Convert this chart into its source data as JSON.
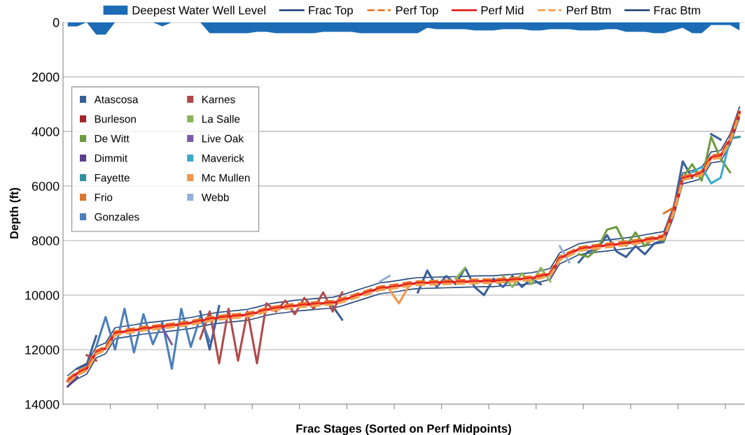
{
  "chart_data": {
    "type": "line",
    "xlabel": "Frac Stages (Sorted on Perf Midpoints)",
    "ylabel": "Depth (ft)",
    "ylim": [
      14000,
      0
    ],
    "yticks": [
      0,
      2000,
      4000,
      6000,
      8000,
      10000,
      12000,
      14000
    ],
    "grid": "y",
    "legend": "top",
    "categories": [
      null,
      null,
      null,
      null,
      null,
      null,
      null,
      null,
      null,
      null,
      null,
      null,
      null,
      null,
      null,
      null,
      null,
      null,
      null,
      null,
      null,
      null,
      null,
      null,
      null,
      null,
      null,
      null,
      null,
      null,
      null,
      null,
      null,
      null,
      null,
      null,
      null,
      null,
      null,
      null,
      null,
      null,
      null,
      null,
      null,
      null,
      null,
      null,
      null,
      null,
      null,
      null,
      null,
      null,
      null,
      null,
      null,
      null,
      null,
      null,
      null,
      null,
      null,
      null,
      null,
      null,
      null,
      null,
      null,
      null,
      null,
      null
    ],
    "series": [
      {
        "name": "Deepest Water Well Level",
        "type": "area",
        "color": "#1c6cb5",
        "values": [
          150,
          150,
          0,
          450,
          450,
          0,
          0,
          0,
          0,
          0,
          150,
          0,
          0,
          0,
          0,
          400,
          400,
          400,
          400,
          400,
          350,
          350,
          400,
          400,
          400,
          400,
          400,
          350,
          350,
          350,
          350,
          400,
          400,
          400,
          400,
          400,
          400,
          400,
          200,
          250,
          250,
          250,
          250,
          300,
          300,
          300,
          250,
          250,
          250,
          300,
          300,
          250,
          250,
          250,
          300,
          300,
          300,
          250,
          250,
          350,
          350,
          350,
          400,
          400,
          300,
          200,
          400,
          400,
          100,
          100,
          100,
          300
        ]
      },
      {
        "name": "Frac Top",
        "color": "#2b4c7e",
        "line_style": "solid",
        "values": [
          12950,
          12670,
          12500,
          11900,
          11750,
          11200,
          11140,
          11090,
          11030,
          10990,
          10950,
          10910,
          10870,
          10820,
          10750,
          10680,
          10630,
          10590,
          10560,
          10520,
          10440,
          10340,
          10280,
          10240,
          10190,
          10160,
          10130,
          10100,
          10080,
          9990,
          9880,
          9770,
          9660,
          9550,
          9510,
          9460,
          9400,
          9360,
          9350,
          9340,
          9330,
          9320,
          9310,
          9300,
          9290,
          9290,
          9260,
          9240,
          9210,
          9180,
          9110,
          9020,
          8450,
          8290,
          8120,
          8060,
          8020,
          7980,
          7940,
          7900,
          7850,
          7790,
          7730,
          7670,
          6760,
          5520,
          5430,
          5330,
          4750,
          4700,
          4100,
          3100
        ]
      },
      {
        "name": "Perf Top",
        "color": "#e8782a",
        "line_style": "dashed",
        "values": [
          13090,
          12810,
          12640,
          12040,
          11890,
          11340,
          11280,
          11230,
          11170,
          11130,
          11090,
          11050,
          11010,
          10960,
          10890,
          10820,
          10770,
          10730,
          10700,
          10660,
          10580,
          10480,
          10420,
          10380,
          10330,
          10300,
          10270,
          10240,
          10220,
          10130,
          10020,
          9910,
          9800,
          9690,
          9650,
          9600,
          9540,
          9500,
          9490,
          9480,
          9470,
          9460,
          9450,
          9440,
          9430,
          9430,
          9400,
          9380,
          9350,
          9320,
          9250,
          9160,
          8590,
          8430,
          8260,
          8200,
          8160,
          8120,
          8080,
          8040,
          7990,
          7930,
          7870,
          7810,
          6900,
          5660,
          5570,
          5470,
          4890,
          4840,
          4240,
          3240
        ]
      },
      {
        "name": "Perf Mid",
        "color": "#e52421",
        "line_style": "solid",
        "values": [
          13150,
          12870,
          12700,
          12100,
          11950,
          11400,
          11340,
          11290,
          11230,
          11190,
          11150,
          11110,
          11070,
          11020,
          10950,
          10880,
          10830,
          10790,
          10760,
          10720,
          10640,
          10540,
          10480,
          10440,
          10390,
          10360,
          10330,
          10300,
          10280,
          10190,
          10080,
          9970,
          9860,
          9750,
          9710,
          9660,
          9600,
          9560,
          9550,
          9540,
          9530,
          9520,
          9510,
          9500,
          9490,
          9490,
          9460,
          9440,
          9410,
          9380,
          9310,
          9220,
          8650,
          8490,
          8320,
          8260,
          8220,
          8180,
          8140,
          8100,
          8050,
          7990,
          7930,
          7870,
          6960,
          5720,
          5630,
          5530,
          4950,
          4900,
          4300,
          3300
        ]
      },
      {
        "name": "Perf Btm",
        "color": "#f4a050",
        "line_style": "dashed",
        "values": [
          13210,
          12930,
          12760,
          12160,
          12010,
          11460,
          11400,
          11350,
          11290,
          11250,
          11210,
          11170,
          11130,
          11080,
          11010,
          10940,
          10890,
          10850,
          10820,
          10780,
          10700,
          10600,
          10540,
          10500,
          10450,
          10420,
          10390,
          10360,
          10340,
          10250,
          10140,
          10030,
          9920,
          9810,
          9770,
          9720,
          9660,
          9620,
          9610,
          9600,
          9590,
          9580,
          9570,
          9560,
          9550,
          9550,
          9520,
          9500,
          9470,
          9440,
          9370,
          9280,
          8710,
          8550,
          8380,
          8320,
          8280,
          8240,
          8200,
          8160,
          8110,
          8050,
          7990,
          7930,
          7020,
          5780,
          5690,
          5590,
          5010,
          4960,
          4360,
          3360
        ]
      },
      {
        "name": "Frac Btm",
        "color": "#2b4c7e",
        "line_style": "solid",
        "values": [
          13350,
          13070,
          12900,
          12300,
          12150,
          11600,
          11540,
          11490,
          11430,
          11390,
          11350,
          11310,
          11270,
          11220,
          11150,
          11080,
          11030,
          10990,
          10960,
          10920,
          10840,
          10740,
          10680,
          10640,
          10590,
          10560,
          10530,
          10500,
          10480,
          10390,
          10280,
          10170,
          10060,
          9950,
          9910,
          9860,
          9800,
          9760,
          9750,
          9740,
          9730,
          9720,
          9710,
          9700,
          9690,
          9690,
          9660,
          9640,
          9610,
          9580,
          9510,
          9420,
          8850,
          8690,
          8520,
          8460,
          8420,
          8380,
          8340,
          8300,
          8250,
          8190,
          8130,
          8070,
          7160,
          5920,
          5830,
          5730,
          5150,
          5100,
          4500,
          3500
        ]
      },
      {
        "name": "Atascosa",
        "color": "#3a5f98",
        "values": [
          null,
          12700,
          12550,
          11500,
          null,
          null,
          null,
          null,
          null,
          null,
          null,
          null,
          null,
          null,
          10600,
          12000,
          10400,
          null,
          null,
          null,
          null,
          null,
          null,
          null,
          null,
          null,
          null,
          null,
          10400,
          10900,
          null,
          null,
          null,
          null,
          null,
          null,
          null,
          9900,
          9100,
          9700,
          9300,
          9600,
          9000,
          9700,
          10000,
          9400,
          9700,
          9300,
          9700,
          9400,
          9600,
          null,
          null,
          null,
          8800,
          8400,
          8300,
          7800,
          8400,
          8600,
          8200,
          8500,
          8100,
          8000,
          6900,
          5100,
          5700,
          null,
          4100,
          4300,
          null,
          null
        ]
      },
      {
        "name": "Burleson",
        "color": "#a0262a",
        "values": [
          null,
          null,
          null,
          null,
          null,
          null,
          null,
          null,
          null,
          null,
          null,
          null,
          null,
          null,
          null,
          null,
          null,
          null,
          null,
          null,
          null,
          null,
          null,
          null,
          null,
          null,
          null,
          null,
          null,
          null,
          null,
          null,
          null,
          null,
          null,
          null,
          null,
          null,
          null,
          null,
          null,
          null,
          null,
          null,
          null,
          null,
          null,
          null,
          null,
          null,
          null,
          9300,
          8700,
          null,
          null,
          null,
          null,
          null,
          null,
          null,
          null,
          null,
          null,
          null,
          null,
          null,
          null,
          null,
          null,
          null,
          null,
          null
        ]
      },
      {
        "name": "De Witt",
        "color": "#6e9a3e",
        "values": [
          null,
          null,
          null,
          null,
          null,
          null,
          null,
          null,
          null,
          null,
          null,
          null,
          null,
          null,
          null,
          null,
          null,
          null,
          null,
          null,
          null,
          null,
          null,
          null,
          null,
          null,
          null,
          null,
          null,
          null,
          null,
          null,
          null,
          null,
          null,
          null,
          null,
          null,
          null,
          null,
          null,
          null,
          null,
          null,
          null,
          null,
          null,
          null,
          null,
          null,
          null,
          null,
          null,
          null,
          8500,
          8600,
          8300,
          7600,
          7500,
          8200,
          7700,
          8200,
          7900,
          8000,
          null,
          5700,
          5200,
          5800,
          4200,
          5000,
          5500,
          null
        ]
      },
      {
        "name": "Dimmit",
        "color": "#5b3f8c",
        "values": [
          13350,
          13000,
          null,
          null,
          null,
          null,
          null,
          null,
          null,
          null,
          null,
          null,
          null,
          null,
          null,
          null,
          null,
          null,
          null,
          null,
          null,
          null,
          null,
          null,
          null,
          null,
          null,
          null,
          null,
          null,
          null,
          null,
          null,
          null,
          null,
          null,
          null,
          null,
          null,
          null,
          null,
          null,
          null,
          null,
          null,
          null,
          null,
          null,
          null,
          null,
          null,
          null,
          null,
          null,
          null,
          null,
          null,
          null,
          null,
          null,
          null,
          null,
          null,
          null,
          null,
          null,
          null,
          null,
          null,
          null,
          null,
          null
        ]
      },
      {
        "name": "Fayette",
        "color": "#2f8fa0",
        "values": [
          null,
          null,
          null,
          null,
          null,
          null,
          null,
          null,
          null,
          null,
          null,
          null,
          null,
          null,
          null,
          null,
          null,
          null,
          null,
          null,
          null,
          null,
          null,
          null,
          null,
          null,
          null,
          null,
          null,
          null,
          null,
          null,
          null,
          null,
          null,
          null,
          null,
          null,
          null,
          null,
          null,
          null,
          null,
          null,
          null,
          null,
          null,
          null,
          null,
          null,
          null,
          null,
          null,
          null,
          null,
          null,
          null,
          null,
          null,
          null,
          null,
          null,
          null,
          null,
          null,
          null,
          null,
          null,
          null,
          null,
          4250,
          4200
        ]
      },
      {
        "name": "Frio",
        "color": "#d9782f",
        "values": [
          null,
          null,
          null,
          null,
          null,
          null,
          null,
          null,
          null,
          null,
          null,
          null,
          null,
          null,
          null,
          null,
          null,
          null,
          null,
          null,
          null,
          null,
          null,
          null,
          null,
          null,
          null,
          null,
          null,
          null,
          null,
          null,
          null,
          null,
          null,
          null,
          null,
          null,
          null,
          null,
          null,
          null,
          null,
          null,
          null,
          null,
          null,
          null,
          null,
          null,
          null,
          null,
          null,
          null,
          null,
          null,
          null,
          null,
          null,
          null,
          null,
          null,
          null,
          7000,
          6800,
          null,
          null,
          null,
          null,
          null,
          null,
          null
        ]
      },
      {
        "name": "Gonzales",
        "color": "#4a7ebb",
        "values": [
          null,
          null,
          null,
          11900,
          10800,
          12000,
          10500,
          12100,
          10700,
          11800,
          11000,
          12700,
          10500,
          11900,
          10800,
          11700,
          null,
          null,
          null,
          null,
          null,
          null,
          null,
          null,
          null,
          null,
          null,
          null,
          null,
          null,
          null,
          null,
          null,
          null,
          null,
          null,
          null,
          null,
          null,
          null,
          null,
          null,
          null,
          null,
          null,
          null,
          null,
          null,
          null,
          null,
          null,
          null,
          null,
          null,
          null,
          null,
          null,
          null,
          null,
          null,
          null,
          null,
          null,
          null,
          null,
          null,
          null,
          null,
          null,
          null,
          null,
          null
        ]
      },
      {
        "name": "Karnes",
        "color": "#b04a4a",
        "values": [
          null,
          null,
          12200,
          12400,
          null,
          null,
          null,
          null,
          null,
          null,
          null,
          null,
          null,
          null,
          11600,
          10600,
          12500,
          10500,
          12400,
          10600,
          12500,
          10300,
          10600,
          10200,
          10700,
          10100,
          10500,
          9900,
          10600,
          9900,
          null,
          null,
          null,
          null,
          null,
          null,
          null,
          null,
          null,
          null,
          null,
          null,
          null,
          null,
          null,
          null,
          null,
          null,
          null,
          null,
          null,
          null,
          null,
          null,
          null,
          null,
          null,
          null,
          null,
          null,
          null,
          null,
          null,
          null,
          null,
          null,
          null,
          null,
          null,
          null,
          null,
          null
        ]
      },
      {
        "name": "La Salle",
        "color": "#8db35a",
        "values": [
          null,
          null,
          null,
          null,
          null,
          null,
          null,
          null,
          null,
          null,
          null,
          null,
          null,
          null,
          null,
          null,
          null,
          null,
          null,
          null,
          null,
          null,
          null,
          null,
          null,
          null,
          null,
          null,
          null,
          null,
          null,
          null,
          null,
          null,
          null,
          null,
          null,
          null,
          null,
          null,
          null,
          9400,
          9000,
          null,
          null,
          null,
          9300,
          9700,
          9200,
          9600,
          9000,
          9500,
          null,
          null,
          null,
          null,
          null,
          null,
          null,
          null,
          null,
          null,
          null,
          null,
          null,
          null,
          null,
          null,
          null,
          null,
          null,
          null
        ]
      },
      {
        "name": "Live Oak",
        "color": "#7b5aa6",
        "values": [
          null,
          null,
          null,
          null,
          null,
          null,
          null,
          null,
          null,
          null,
          11200,
          11800,
          null,
          null,
          null,
          null,
          null,
          null,
          null,
          null,
          null,
          null,
          null,
          null,
          null,
          null,
          null,
          null,
          null,
          null,
          null,
          null,
          null,
          null,
          null,
          null,
          null,
          null,
          null,
          null,
          null,
          null,
          null,
          null,
          null,
          null,
          null,
          null,
          null,
          null,
          null,
          null,
          null,
          null,
          null,
          null,
          null,
          null,
          null,
          null,
          null,
          null,
          null,
          null,
          null,
          null,
          null,
          null,
          null,
          null,
          null,
          null
        ]
      },
      {
        "name": "Maverick",
        "color": "#3aaac8",
        "values": [
          null,
          null,
          null,
          null,
          null,
          null,
          null,
          null,
          null,
          null,
          null,
          null,
          null,
          null,
          null,
          null,
          null,
          null,
          null,
          null,
          null,
          null,
          null,
          null,
          null,
          null,
          null,
          null,
          null,
          null,
          null,
          null,
          null,
          null,
          null,
          null,
          null,
          null,
          null,
          null,
          null,
          null,
          null,
          null,
          null,
          null,
          null,
          null,
          null,
          null,
          null,
          null,
          null,
          null,
          null,
          null,
          null,
          null,
          null,
          null,
          null,
          null,
          null,
          null,
          null,
          null,
          5500,
          5300,
          5900,
          5700,
          4300,
          3300
        ]
      },
      {
        "name": "Mc Mullen",
        "color": "#f0964a",
        "values": [
          null,
          null,
          null,
          null,
          null,
          null,
          null,
          null,
          null,
          null,
          null,
          null,
          null,
          null,
          null,
          null,
          null,
          null,
          null,
          null,
          null,
          null,
          null,
          null,
          null,
          null,
          null,
          null,
          null,
          null,
          null,
          null,
          null,
          null,
          9800,
          10300,
          9700,
          null,
          null,
          null,
          null,
          null,
          null,
          null,
          null,
          null,
          null,
          null,
          null,
          null,
          null,
          null,
          null,
          null,
          null,
          null,
          null,
          null,
          null,
          null,
          null,
          null,
          null,
          null,
          null,
          null,
          null,
          null,
          null,
          null,
          null,
          null
        ]
      },
      {
        "name": "Webb",
        "color": "#93b0d8",
        "values": [
          null,
          null,
          null,
          null,
          null,
          null,
          null,
          null,
          null,
          null,
          null,
          null,
          null,
          null,
          null,
          null,
          null,
          null,
          null,
          null,
          null,
          null,
          null,
          null,
          null,
          null,
          null,
          null,
          null,
          null,
          null,
          null,
          null,
          9500,
          9300,
          null,
          null,
          null,
          null,
          null,
          null,
          null,
          null,
          null,
          null,
          null,
          null,
          null,
          null,
          null,
          null,
          null,
          8200,
          8800,
          null,
          null,
          null,
          null,
          null,
          null,
          null,
          null,
          null,
          null,
          null,
          null,
          null,
          null,
          null,
          null,
          null,
          null
        ]
      }
    ]
  }
}
